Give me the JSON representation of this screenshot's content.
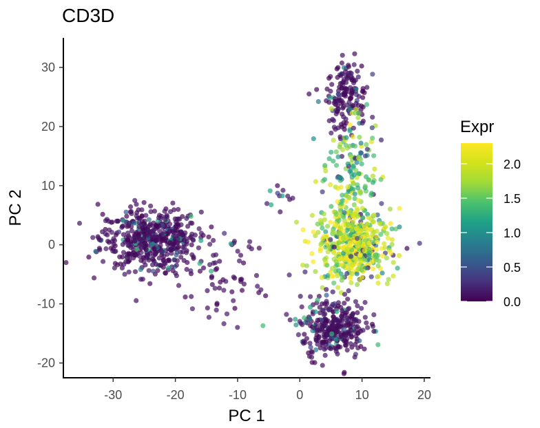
{
  "chart_data": {
    "type": "scatter",
    "title": "CD3D",
    "xlabel": "PC 1",
    "ylabel": "PC 2",
    "xlim": [
      -38,
      21
    ],
    "ylim": [
      -22.5,
      35
    ],
    "x_ticks": [
      "-30",
      "-20",
      "-10",
      "0",
      "10",
      "20"
    ],
    "y_ticks": [
      "-20",
      "-10",
      "0",
      "10",
      "20",
      "30"
    ],
    "x_tick_values": [
      -30,
      -20,
      -10,
      0,
      10,
      20
    ],
    "y_tick_values": [
      -20,
      -10,
      0,
      10,
      20,
      30
    ],
    "grid": false,
    "legend": {
      "title": "Expr",
      "position": "right",
      "color_scale": "viridis",
      "range": [
        0.0,
        2.3
      ],
      "labels": [
        "0.0",
        "0.5",
        "1.0",
        "1.5",
        "2.0"
      ],
      "label_values": [
        0.0,
        0.5,
        1.0,
        1.5,
        2.0
      ]
    },
    "colors": {
      "low": "#440154",
      "high": "#fde725",
      "point_opacity": 0.7
    },
    "clusters": [
      {
        "label": "left cloud",
        "center_x": -24,
        "center_y": 1,
        "spread_x": 4.0,
        "spread_y": 2.6,
        "approx_points": 520,
        "expr_mean": 0.15
      },
      {
        "label": "left tail",
        "center_x": -13,
        "center_y": -5,
        "spread_x": 3.5,
        "spread_y": 4.0,
        "approx_points": 70,
        "expr_mean": 0.3
      },
      {
        "label": "top column",
        "center_x": 7.5,
        "center_y": 25,
        "spread_x": 1.6,
        "spread_y": 3.2,
        "approx_points": 160,
        "expr_mean": 0.35
      },
      {
        "label": "upper stalk",
        "center_x": 8.5,
        "center_y": 12,
        "spread_x": 2.0,
        "spread_y": 5.0,
        "approx_points": 160,
        "expr_mean": 1.5
      },
      {
        "label": "lower bulb",
        "center_x": 8.5,
        "center_y": 0,
        "spread_x": 3.0,
        "spread_y": 3.0,
        "approx_points": 520,
        "expr_mean": 1.85
      },
      {
        "label": "bottom cloud",
        "center_x": 5.5,
        "center_y": -14,
        "spread_x": 2.6,
        "spread_y": 2.5,
        "approx_points": 320,
        "expr_mean": 0.15
      },
      {
        "label": "small group",
        "center_x": -3.5,
        "center_y": 8,
        "spread_x": 0.9,
        "spread_y": 1.2,
        "approx_points": 12,
        "expr_mean": 0.05
      }
    ]
  }
}
